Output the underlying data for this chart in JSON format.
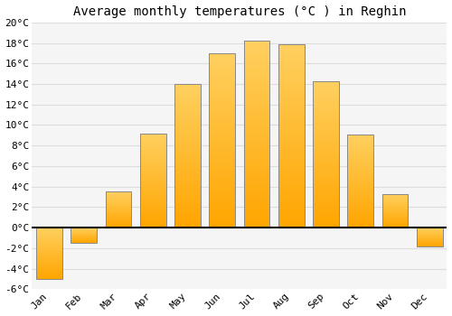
{
  "title": "Average monthly temperatures (°C ) in Reghin",
  "months": [
    "Jan",
    "Feb",
    "Mar",
    "Apr",
    "May",
    "Jun",
    "Jul",
    "Aug",
    "Sep",
    "Oct",
    "Nov",
    "Dec"
  ],
  "temperatures": [
    -5.0,
    -1.5,
    3.5,
    9.2,
    14.0,
    17.0,
    18.2,
    17.9,
    14.3,
    9.1,
    3.3,
    -1.8
  ],
  "bar_color_bottom": "#FFA500",
  "bar_color_top": "#FFD060",
  "bar_edge_color": "#888888",
  "ylim": [
    -6,
    20
  ],
  "ytick_step": 2,
  "background_color": "#ffffff",
  "plot_bg_color": "#f5f5f5",
  "grid_color": "#dddddd",
  "title_fontsize": 10,
  "tick_fontsize": 8,
  "zero_line_color": "#000000",
  "bar_width": 0.75
}
